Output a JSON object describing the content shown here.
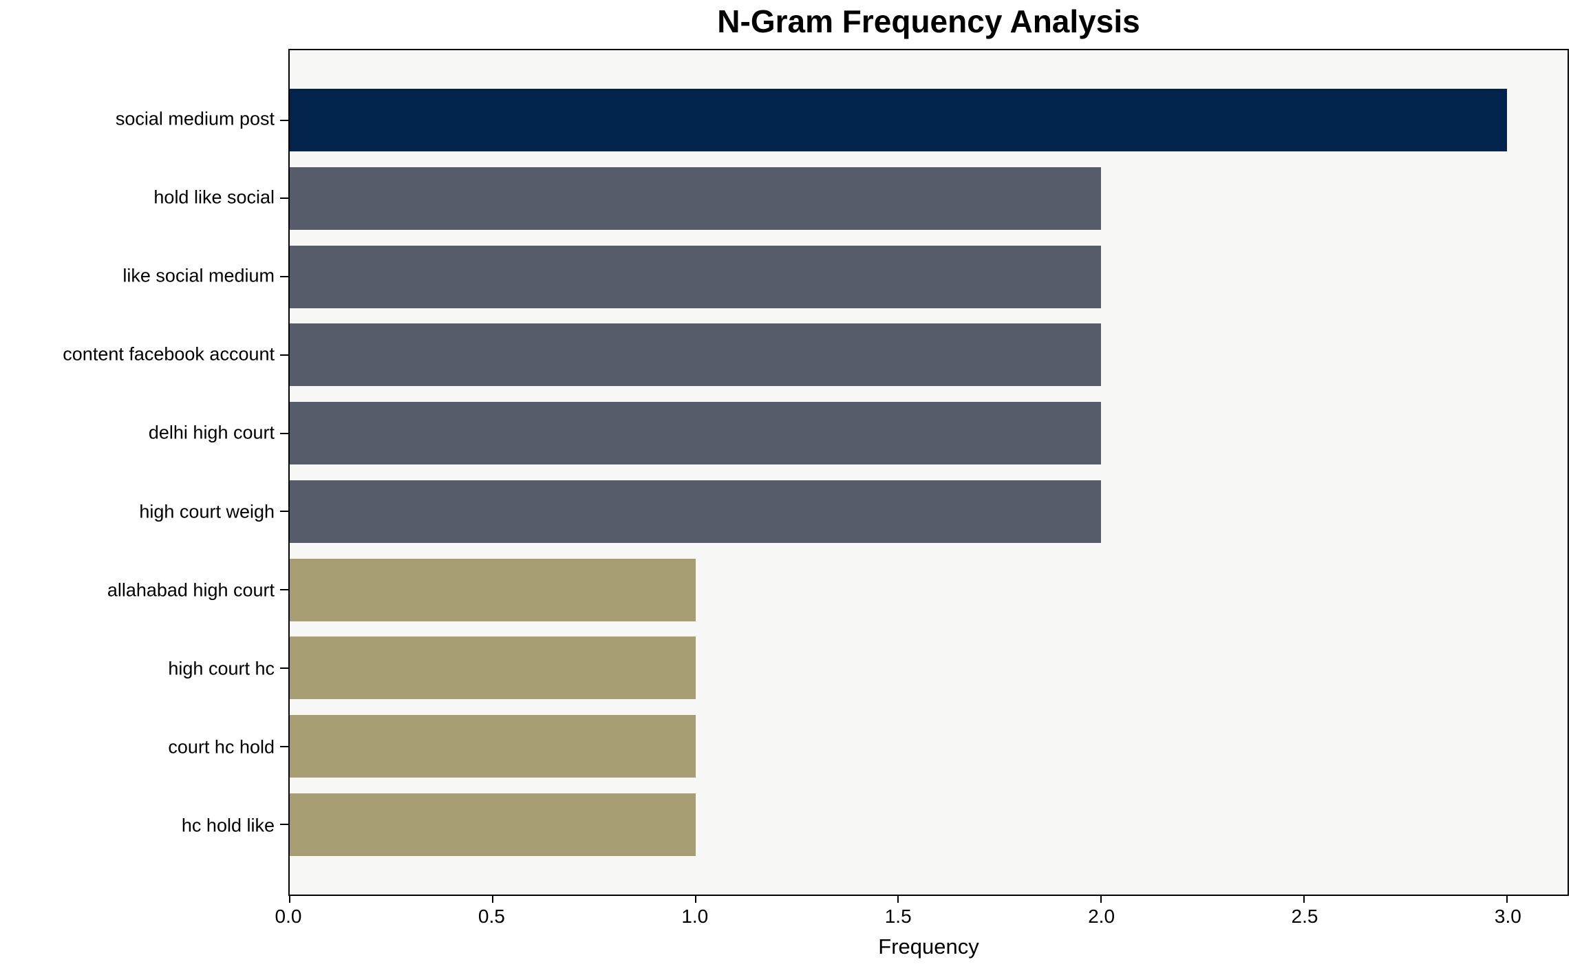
{
  "chart_data": {
    "type": "bar",
    "orientation": "horizontal",
    "title": "N-Gram Frequency Analysis",
    "xlabel": "Frequency",
    "ylabel": "",
    "categories": [
      "social medium post",
      "hold like social",
      "like social medium",
      "content facebook account",
      "delhi high court",
      "high court weigh",
      "allahabad high court",
      "high court hc",
      "court hc hold",
      "hc hold like"
    ],
    "values": [
      3,
      2,
      2,
      2,
      2,
      2,
      1,
      1,
      1,
      1
    ],
    "bar_colors": [
      "#02234C",
      "#575C6B",
      "#575C6B",
      "#575C6B",
      "#575C6B",
      "#575C6B",
      "#A69D73",
      "#A69D73",
      "#A69D73",
      "#A69D73"
    ],
    "xlim": [
      0,
      3.15
    ],
    "xticks": [
      0.0,
      0.5,
      1.0,
      1.5,
      2.0,
      2.5,
      3.0
    ],
    "xtick_labels": [
      "0.0",
      "0.5",
      "1.0",
      "1.5",
      "2.0",
      "2.5",
      "3.0"
    ],
    "grid": false,
    "legend_position": "none",
    "colors": {
      "plot_background": "#F7F7F6",
      "figure_background": "#FFFFFF",
      "spine": "#000000",
      "text": "#000000"
    }
  }
}
